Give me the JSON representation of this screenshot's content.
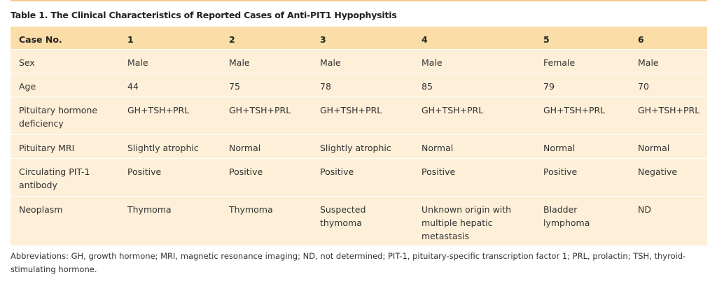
{
  "title": "Table 1.  The Clinical Characteristics of Reported Cases of Anti-PIT1 Hypophysitis",
  "colors": {
    "header_bg": "#fbdda8",
    "row_bg": "#fdefd8",
    "rule": "#f0cb8a"
  },
  "table": {
    "headers": [
      "Case No.",
      "1",
      "2",
      "3",
      "4",
      "5",
      "6"
    ],
    "rows": [
      [
        "Sex",
        "Male",
        "Male",
        "Male",
        "Male",
        "Female",
        "Male"
      ],
      [
        "Age",
        "44",
        "75",
        "78",
        "85",
        "79",
        "70"
      ],
      [
        "Pituitary hormone deficiency",
        "GH+TSH+PRL",
        "GH+TSH+PRL",
        "GH+TSH+PRL",
        "GH+TSH+PRL",
        "GH+TSH+PRL",
        "GH+TSH+PRL"
      ],
      [
        "Pituitary MRI",
        "Slightly atrophic",
        "Normal",
        "Slightly atrophic",
        "Normal",
        "Normal",
        "Normal"
      ],
      [
        "Circulating PIT-1 antibody",
        "Positive",
        "Positive",
        "Positive",
        "Positive",
        "Positive",
        "Negative"
      ],
      [
        "Neoplasm",
        "Thymoma",
        "Thymoma",
        "Suspected thymoma",
        "Unknown origin with multiple hepatic metastasis",
        "Bladder lymphoma",
        "ND"
      ]
    ]
  },
  "footnote": "Abbreviations: GH, growth hormone; MRI, magnetic resonance imaging; ND, not determined; PIT-1, pituitary-specific transcription factor 1; PRL, prolactin; TSH, thyroid-stimulating hormone."
}
